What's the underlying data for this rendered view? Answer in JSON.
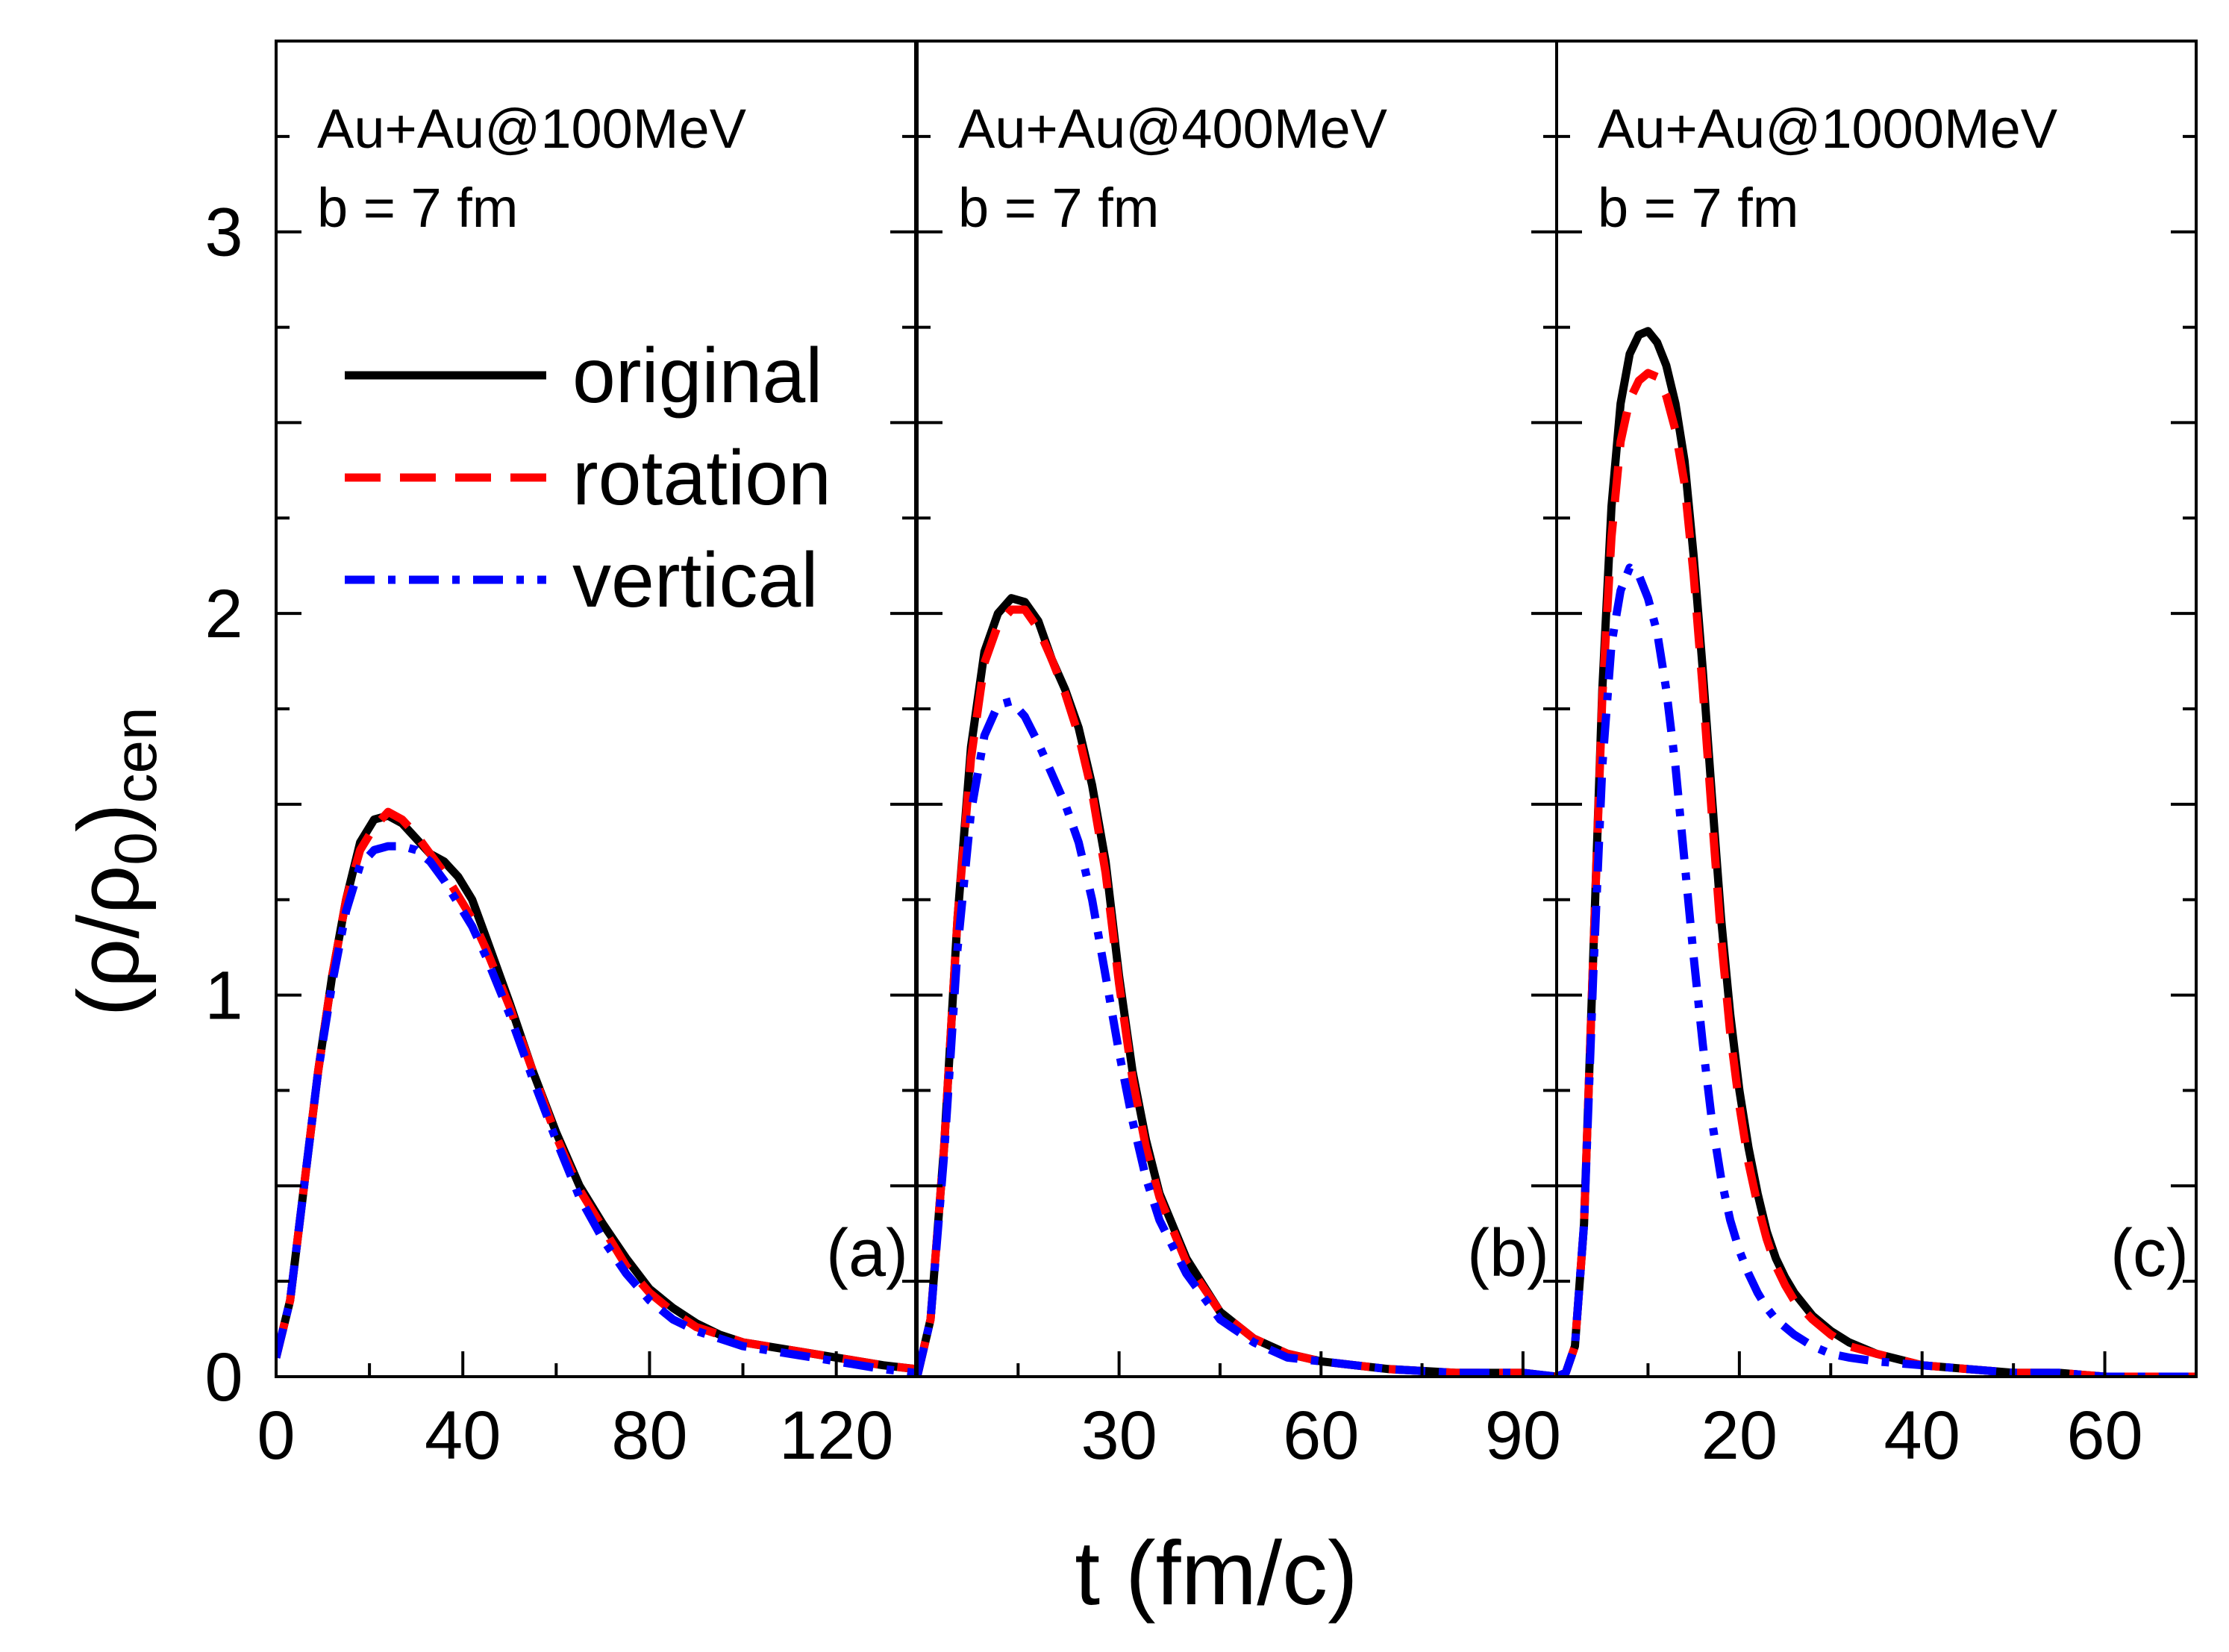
{
  "chart_data": {
    "type": "line",
    "xlabel": "t (fm/c)",
    "ylabel": {
      "main": "(ρ/ρ",
      "sub1": "0",
      "mid": ")",
      "sub2": "cen"
    },
    "ylim": [
      0,
      3.5
    ],
    "yticks": [
      0,
      1,
      2,
      3
    ],
    "ytick_labels": [
      "0",
      "1",
      "2",
      "3"
    ],
    "legend": {
      "placement": "upper-left of panel (a)",
      "entries": [
        {
          "name": "original",
          "style": "solid",
          "color": "#000000"
        },
        {
          "name": "rotation",
          "style": "dashed",
          "color": "#ff0000"
        },
        {
          "name": "vertical",
          "style": "dash-dot",
          "color": "#0000ff"
        }
      ]
    },
    "panels": [
      {
        "label": "(a)",
        "title": "Au+Au@100MeV",
        "subtitle": "b = 7 fm",
        "xlim": [
          0,
          137
        ],
        "xticks": [
          0,
          40,
          80,
          120
        ],
        "xtick_labels": [
          "0",
          "40",
          "80",
          "120"
        ],
        "series": [
          {
            "name": "original",
            "x": [
              0,
              3,
              6,
              9,
              12,
              15,
              18,
              21,
              24,
              27,
              30,
              33,
              36,
              39,
              42,
              45,
              50,
              55,
              60,
              65,
              70,
              75,
              80,
              85,
              90,
              95,
              100,
              110,
              120,
              130,
              137
            ],
            "y": [
              0.05,
              0.2,
              0.5,
              0.8,
              1.05,
              1.25,
              1.4,
              1.46,
              1.47,
              1.45,
              1.41,
              1.37,
              1.35,
              1.31,
              1.25,
              1.15,
              0.98,
              0.8,
              0.64,
              0.5,
              0.4,
              0.31,
              0.23,
              0.18,
              0.14,
              0.11,
              0.09,
              0.07,
              0.05,
              0.03,
              0.02
            ]
          },
          {
            "name": "rotation",
            "x": [
              0,
              3,
              6,
              9,
              12,
              15,
              18,
              21,
              24,
              27,
              30,
              33,
              36,
              39,
              42,
              45,
              50,
              55,
              60,
              65,
              70,
              75,
              80,
              85,
              90,
              95,
              100,
              110,
              120,
              130,
              137
            ],
            "y": [
              0.05,
              0.2,
              0.5,
              0.8,
              1.05,
              1.25,
              1.38,
              1.44,
              1.48,
              1.46,
              1.42,
              1.37,
              1.32,
              1.26,
              1.2,
              1.12,
              0.97,
              0.8,
              0.63,
              0.49,
              0.39,
              0.29,
              0.22,
              0.17,
              0.13,
              0.11,
              0.09,
              0.07,
              0.05,
              0.03,
              0.02
            ]
          },
          {
            "name": "vertical",
            "x": [
              0,
              3,
              6,
              9,
              12,
              15,
              18,
              21,
              24,
              27,
              30,
              33,
              36,
              39,
              42,
              45,
              50,
              55,
              60,
              65,
              70,
              75,
              80,
              85,
              90,
              95,
              100,
              110,
              120,
              130,
              137
            ],
            "y": [
              0.05,
              0.2,
              0.5,
              0.8,
              1.03,
              1.22,
              1.34,
              1.38,
              1.39,
              1.39,
              1.38,
              1.35,
              1.3,
              1.24,
              1.18,
              1.1,
              0.95,
              0.78,
              0.62,
              0.47,
              0.36,
              0.27,
              0.2,
              0.15,
              0.12,
              0.1,
              0.08,
              0.06,
              0.04,
              0.02,
              0.01
            ]
          }
        ]
      },
      {
        "label": "(b)",
        "title": "Au+Au@400MeV",
        "subtitle": "b = 7 fm",
        "xlim": [
          0,
          95
        ],
        "xticks": [
          30,
          60,
          90
        ],
        "xtick_labels": [
          "30",
          "60",
          "90"
        ],
        "series": [
          {
            "name": "original",
            "x": [
              0,
              2,
              4,
              6,
              8,
              10,
              12,
              14,
              16,
              18,
              20,
              22,
              24,
              26,
              28,
              30,
              32,
              34,
              36,
              40,
              45,
              50,
              55,
              60,
              65,
              70,
              80,
              90,
              95
            ],
            "y": [
              0.0,
              0.15,
              0.6,
              1.2,
              1.65,
              1.9,
              2.0,
              2.04,
              2.03,
              1.98,
              1.88,
              1.8,
              1.7,
              1.55,
              1.35,
              1.05,
              0.8,
              0.62,
              0.48,
              0.31,
              0.17,
              0.1,
              0.06,
              0.04,
              0.03,
              0.02,
              0.01,
              0.01,
              0.0
            ]
          },
          {
            "name": "rotation",
            "x": [
              0,
              2,
              4,
              6,
              8,
              10,
              12,
              14,
              16,
              18,
              20,
              22,
              24,
              26,
              28,
              30,
              32,
              34,
              36,
              40,
              45,
              50,
              55,
              60,
              65,
              70,
              80,
              90,
              95
            ],
            "y": [
              0.0,
              0.15,
              0.6,
              1.2,
              1.62,
              1.87,
              1.97,
              2.01,
              2.01,
              1.96,
              1.88,
              1.79,
              1.68,
              1.53,
              1.32,
              1.03,
              0.78,
              0.6,
              0.47,
              0.3,
              0.17,
              0.1,
              0.06,
              0.04,
              0.03,
              0.02,
              0.01,
              0.01,
              0.0
            ]
          },
          {
            "name": "vertical",
            "x": [
              0,
              2,
              4,
              6,
              8,
              10,
              12,
              14,
              16,
              18,
              20,
              22,
              24,
              26,
              28,
              30,
              32,
              34,
              36,
              40,
              45,
              50,
              55,
              60,
              65,
              70,
              80,
              90,
              95
            ],
            "y": [
              0.0,
              0.15,
              0.58,
              1.12,
              1.48,
              1.68,
              1.76,
              1.77,
              1.73,
              1.66,
              1.58,
              1.5,
              1.4,
              1.25,
              1.05,
              0.85,
              0.67,
              0.52,
              0.41,
              0.27,
              0.15,
              0.09,
              0.05,
              0.04,
              0.03,
              0.02,
              0.01,
              0.01,
              0.0
            ]
          }
        ]
      },
      {
        "label": "(c)",
        "title": "Au+Au@1000MeV",
        "subtitle": "b = 7 fm",
        "xlim": [
          0,
          70
        ],
        "xticks": [
          20,
          40,
          60
        ],
        "xtick_labels": [
          "20",
          "40",
          "60"
        ],
        "series": [
          {
            "name": "original",
            "x": [
              0,
              1,
              2,
              3,
              4,
              5,
              6,
              7,
              8,
              9,
              10,
              11,
              12,
              13,
              14,
              15,
              16,
              17,
              18,
              19,
              20,
              21,
              22,
              23,
              24,
              25,
              26,
              28,
              30,
              32,
              35,
              40,
              45,
              50,
              55,
              60,
              65,
              70
            ],
            "y": [
              0.0,
              0.01,
              0.08,
              0.4,
              1.1,
              1.8,
              2.28,
              2.55,
              2.68,
              2.73,
              2.74,
              2.71,
              2.65,
              2.55,
              2.4,
              2.15,
              1.85,
              1.52,
              1.2,
              0.95,
              0.75,
              0.6,
              0.48,
              0.38,
              0.31,
              0.26,
              0.22,
              0.16,
              0.12,
              0.09,
              0.06,
              0.03,
              0.02,
              0.01,
              0.01,
              0.0,
              0.0,
              0.0
            ]
          },
          {
            "name": "rotation",
            "x": [
              0,
              1,
              2,
              3,
              4,
              5,
              6,
              7,
              8,
              9,
              10,
              11,
              12,
              13,
              14,
              15,
              16,
              17,
              18,
              19,
              20,
              21,
              22,
              23,
              24,
              25,
              26,
              28,
              30,
              32,
              35,
              40,
              45,
              50,
              55,
              60,
              65,
              70
            ],
            "y": [
              0.0,
              0.01,
              0.08,
              0.4,
              1.1,
              1.78,
              2.2,
              2.45,
              2.56,
              2.61,
              2.63,
              2.62,
              2.57,
              2.48,
              2.34,
              2.1,
              1.8,
              1.47,
              1.15,
              0.9,
              0.71,
              0.56,
              0.45,
              0.36,
              0.29,
              0.24,
              0.2,
              0.15,
              0.11,
              0.08,
              0.06,
              0.03,
              0.02,
              0.01,
              0.01,
              0.0,
              0.0,
              0.0
            ]
          },
          {
            "name": "vertical",
            "x": [
              0,
              1,
              2,
              3,
              4,
              5,
              6,
              7,
              8,
              9,
              10,
              11,
              12,
              13,
              14,
              15,
              16,
              17,
              18,
              19,
              20,
              21,
              22,
              23,
              24,
              25,
              26,
              28,
              30,
              32,
              35,
              40,
              45,
              50,
              55,
              60,
              65,
              70
            ],
            "y": [
              0.0,
              0.01,
              0.08,
              0.4,
              1.05,
              1.6,
              1.92,
              2.06,
              2.12,
              2.1,
              2.04,
              1.95,
              1.8,
              1.6,
              1.35,
              1.1,
              0.87,
              0.67,
              0.52,
              0.41,
              0.33,
              0.27,
              0.22,
              0.18,
              0.15,
              0.13,
              0.11,
              0.08,
              0.06,
              0.05,
              0.04,
              0.03,
              0.02,
              0.01,
              0.01,
              0.0,
              0.0,
              0.0
            ]
          }
        ]
      }
    ]
  }
}
